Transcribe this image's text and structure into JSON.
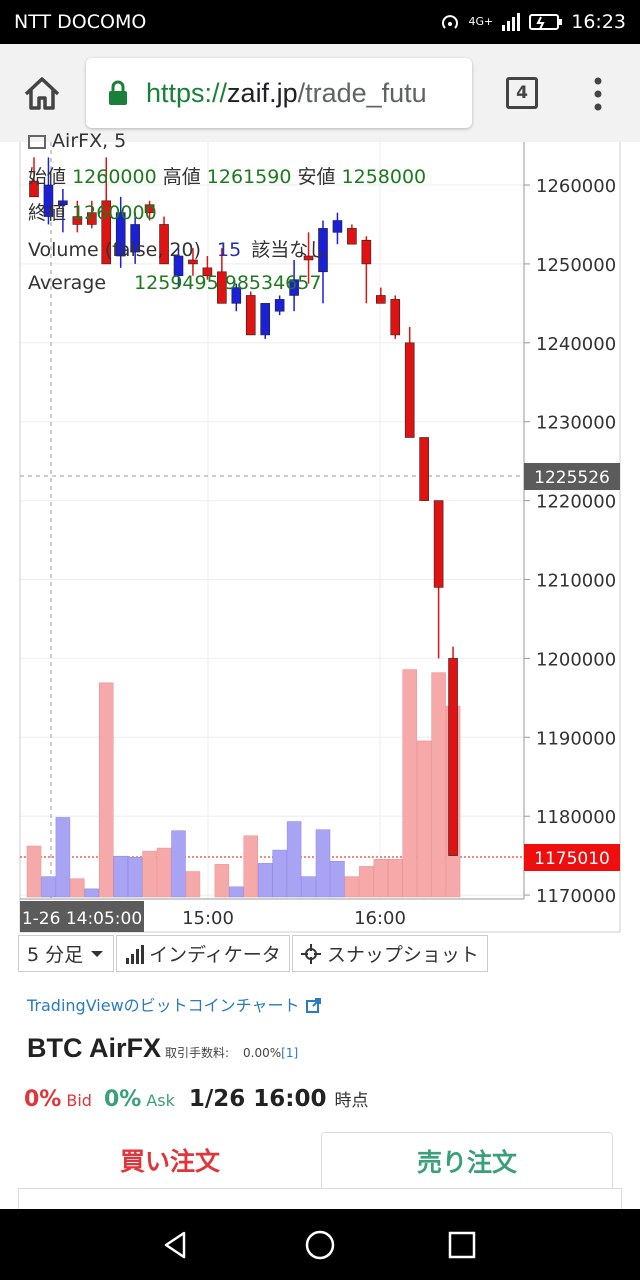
{
  "status": {
    "carrier": "NTT DOCOMO",
    "network": "4G+",
    "time": "16:23"
  },
  "browser": {
    "url_scheme": "https://",
    "url_host": "zaif.jp",
    "url_path": "/trade_futu",
    "tab_count": "4"
  },
  "chart": {
    "symbol_partial": "AirFX, 5",
    "ohlc": {
      "open_label": "始値",
      "open": "1260000",
      "high_label": "高値",
      "high": "1261590",
      "low_label": "安値",
      "low": "1258000",
      "close_label": "終値",
      "close": "1260000"
    },
    "volume": {
      "label": "Volume (false, 20)",
      "value": "15",
      "note": "該当なし"
    },
    "average": {
      "label": "Average",
      "value": "1259495.98534657"
    },
    "price_axis": [
      "1260000",
      "1250000",
      "1240000",
      "1230000",
      "1220000",
      "1210000",
      "1200000",
      "1190000",
      "1180000",
      "1170000"
    ],
    "price_marker": "1225526",
    "last_price": "1175010",
    "time_labels": [
      "15:00",
      "16:00"
    ],
    "crosshair_time": "1-26 14:05:00",
    "colors": {
      "up": "#1b1fd6",
      "down": "#e01212",
      "vol_up": "#a8a3f3",
      "vol_down": "#f5a9a9",
      "last_price_bg": "#ee0e0e",
      "marker_bg": "#5b5b5b"
    }
  },
  "chart_data": {
    "type": "candlestick",
    "interval": "5 分足",
    "ylim": [
      1170000,
      1262000
    ],
    "candles": [
      {
        "o": 1260500,
        "h": 1263500,
        "l": 1258500,
        "c": 1258500
      },
      {
        "o": 1256000,
        "h": 1263500,
        "l": 1255000,
        "c": 1260000
      },
      {
        "o": 1257500,
        "h": 1259500,
        "l": 1254000,
        "c": 1258000
      },
      {
        "o": 1256000,
        "h": 1258000,
        "l": 1254000,
        "c": 1255000
      },
      {
        "o": 1256500,
        "h": 1258000,
        "l": 1254500,
        "c": 1255000
      },
      {
        "o": 1258000,
        "h": 1263500,
        "l": 1250000,
        "c": 1250000
      },
      {
        "o": 1251000,
        "h": 1258500,
        "l": 1249500,
        "c": 1256500
      },
      {
        "o": 1251500,
        "h": 1256500,
        "l": 1250000,
        "c": 1255000
      },
      {
        "o": 1257500,
        "h": 1258000,
        "l": 1255500,
        "c": 1256500
      },
      {
        "o": 1255000,
        "h": 1256000,
        "l": 1250000,
        "c": 1250000
      },
      {
        "o": 1248500,
        "h": 1252000,
        "l": 1247000,
        "c": 1251000
      },
      {
        "o": 1250500,
        "h": 1252000,
        "l": 1248500,
        "c": 1250000
      },
      {
        "o": 1249500,
        "h": 1251000,
        "l": 1248000,
        "c": 1248500
      },
      {
        "o": 1249000,
        "h": 1252000,
        "l": 1245000,
        "c": 1245000
      },
      {
        "o": 1245000,
        "h": 1247500,
        "l": 1244000,
        "c": 1247000
      },
      {
        "o": 1246000,
        "h": 1246500,
        "l": 1241000,
        "c": 1241000
      },
      {
        "o": 1241000,
        "h": 1245000,
        "l": 1240500,
        "c": 1245000
      },
      {
        "o": 1244000,
        "h": 1246000,
        "l": 1243500,
        "c": 1245500
      },
      {
        "o": 1246000,
        "h": 1250500,
        "l": 1244000,
        "c": 1248000
      },
      {
        "o": 1251000,
        "h": 1254000,
        "l": 1247500,
        "c": 1250500
      },
      {
        "o": 1249000,
        "h": 1255500,
        "l": 1245000,
        "c": 1254500
      },
      {
        "o": 1254000,
        "h": 1256500,
        "l": 1252500,
        "c": 1255500
      },
      {
        "o": 1254500,
        "h": 1255000,
        "l": 1252500,
        "c": 1252500
      },
      {
        "o": 1253000,
        "h": 1253500,
        "l": 1245000,
        "c": 1250000
      },
      {
        "o": 1246000,
        "h": 1247000,
        "l": 1245000,
        "c": 1245000
      },
      {
        "o": 1245500,
        "h": 1246000,
        "l": 1240500,
        "c": 1241000
      },
      {
        "o": 1240000,
        "h": 1242000,
        "l": 1228000,
        "c": 1228000
      },
      {
        "o": 1228000,
        "h": 1228000,
        "l": 1220000,
        "c": 1220000
      },
      {
        "o": 1220000,
        "h": 1220000,
        "l": 1200000,
        "c": 1209000
      },
      {
        "o": 1200000,
        "h": 1201500,
        "l": 1175010,
        "c": 1175010
      }
    ],
    "volume": [
      {
        "v": 5,
        "dir": "down"
      },
      {
        "v": 2,
        "dir": "up"
      },
      {
        "v": 7.8,
        "dir": "up"
      },
      {
        "v": 1.8,
        "dir": "down"
      },
      {
        "v": 0.8,
        "dir": "up"
      },
      {
        "v": 21,
        "dir": "down"
      },
      {
        "v": 4,
        "dir": "up"
      },
      {
        "v": 3.9,
        "dir": "up"
      },
      {
        "v": 4.5,
        "dir": "down"
      },
      {
        "v": 4.8,
        "dir": "down"
      },
      {
        "v": 6.5,
        "dir": "up"
      },
      {
        "v": 2.5,
        "dir": "down"
      },
      {
        "v": 0,
        "dir": "down"
      },
      {
        "v": 3.2,
        "dir": "down"
      },
      {
        "v": 1,
        "dir": "up"
      },
      {
        "v": 6,
        "dir": "down"
      },
      {
        "v": 3.3,
        "dir": "up"
      },
      {
        "v": 4.6,
        "dir": "up"
      },
      {
        "v": 7.4,
        "dir": "up"
      },
      {
        "v": 2,
        "dir": "up"
      },
      {
        "v": 6.6,
        "dir": "up"
      },
      {
        "v": 3.5,
        "dir": "up"
      },
      {
        "v": 2,
        "dir": "down"
      },
      {
        "v": 3,
        "dir": "down"
      },
      {
        "v": 3.7,
        "dir": "down"
      },
      {
        "v": 3.7,
        "dir": "down"
      },
      {
        "v": 22.3,
        "dir": "down"
      },
      {
        "v": 15.3,
        "dir": "down"
      },
      {
        "v": 22,
        "dir": "down"
      },
      {
        "v": 18.7,
        "dir": "down"
      }
    ]
  },
  "controls": {
    "interval": "5 分足",
    "indicators": "インディケータ",
    "snapshot": "スナップショット"
  },
  "tv_link": "TradingViewのビットコインチャート",
  "pair": {
    "name": "BTC AirFX",
    "fee_label": "取引手数料:",
    "fee_value": "0.00%",
    "fee_link": "[1]"
  },
  "quote": {
    "bid_pct": "0%",
    "bid_label": "Bid",
    "ask_pct": "0%",
    "ask_label": "Ask",
    "datetime": "1/26 16:00",
    "suffix": "時点"
  },
  "order_tabs": {
    "buy": "買い注文",
    "sell": "売り注文"
  }
}
